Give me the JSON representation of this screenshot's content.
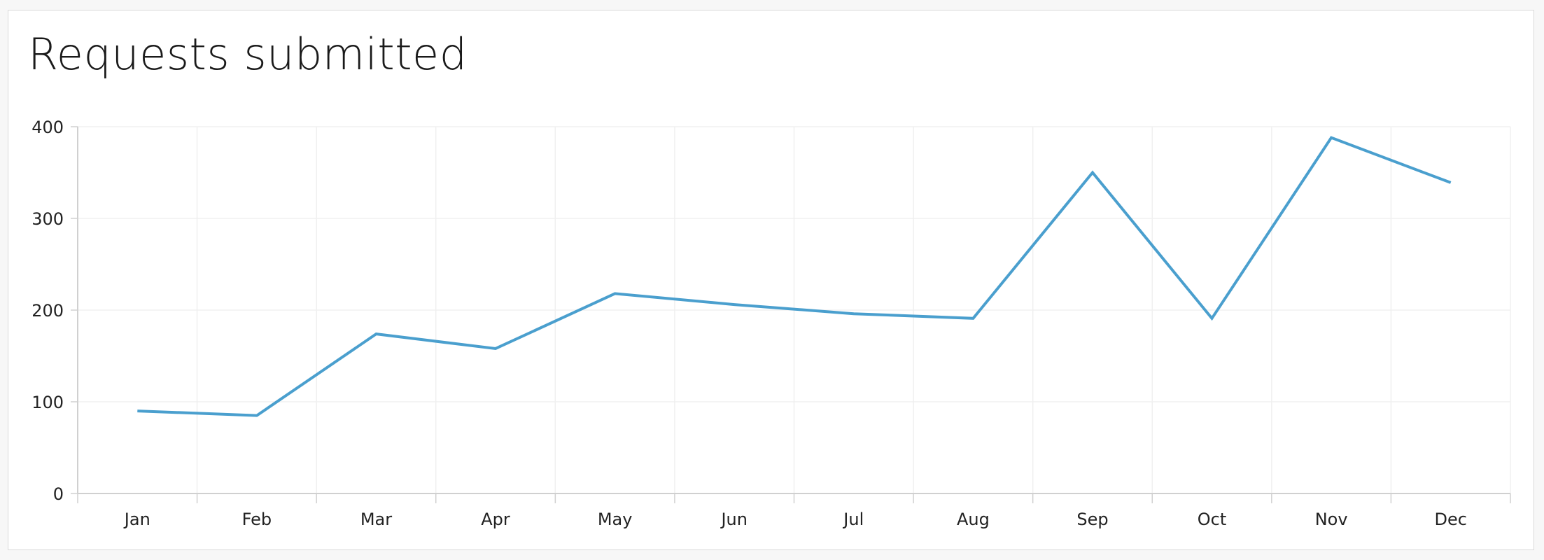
{
  "chart_data": {
    "type": "line",
    "title": "Requests submitted",
    "xlabel": "",
    "ylabel": "",
    "categories": [
      "Jan",
      "Feb",
      "Mar",
      "Apr",
      "May",
      "Jun",
      "Jul",
      "Aug",
      "Sep",
      "Oct",
      "Nov",
      "Dec"
    ],
    "series": [
      {
        "values": [
          90,
          85,
          174,
          158,
          218,
          206,
          196,
          191,
          350,
          191,
          388,
          339
        ]
      }
    ],
    "ylim": [
      0,
      400
    ],
    "yticks": [
      0,
      100,
      200,
      300,
      400
    ],
    "grid": true,
    "legend": "none",
    "colors": {
      "line": "#4a9fce",
      "grid": "#f0f0f0",
      "axis": "#d0d0d0"
    }
  }
}
